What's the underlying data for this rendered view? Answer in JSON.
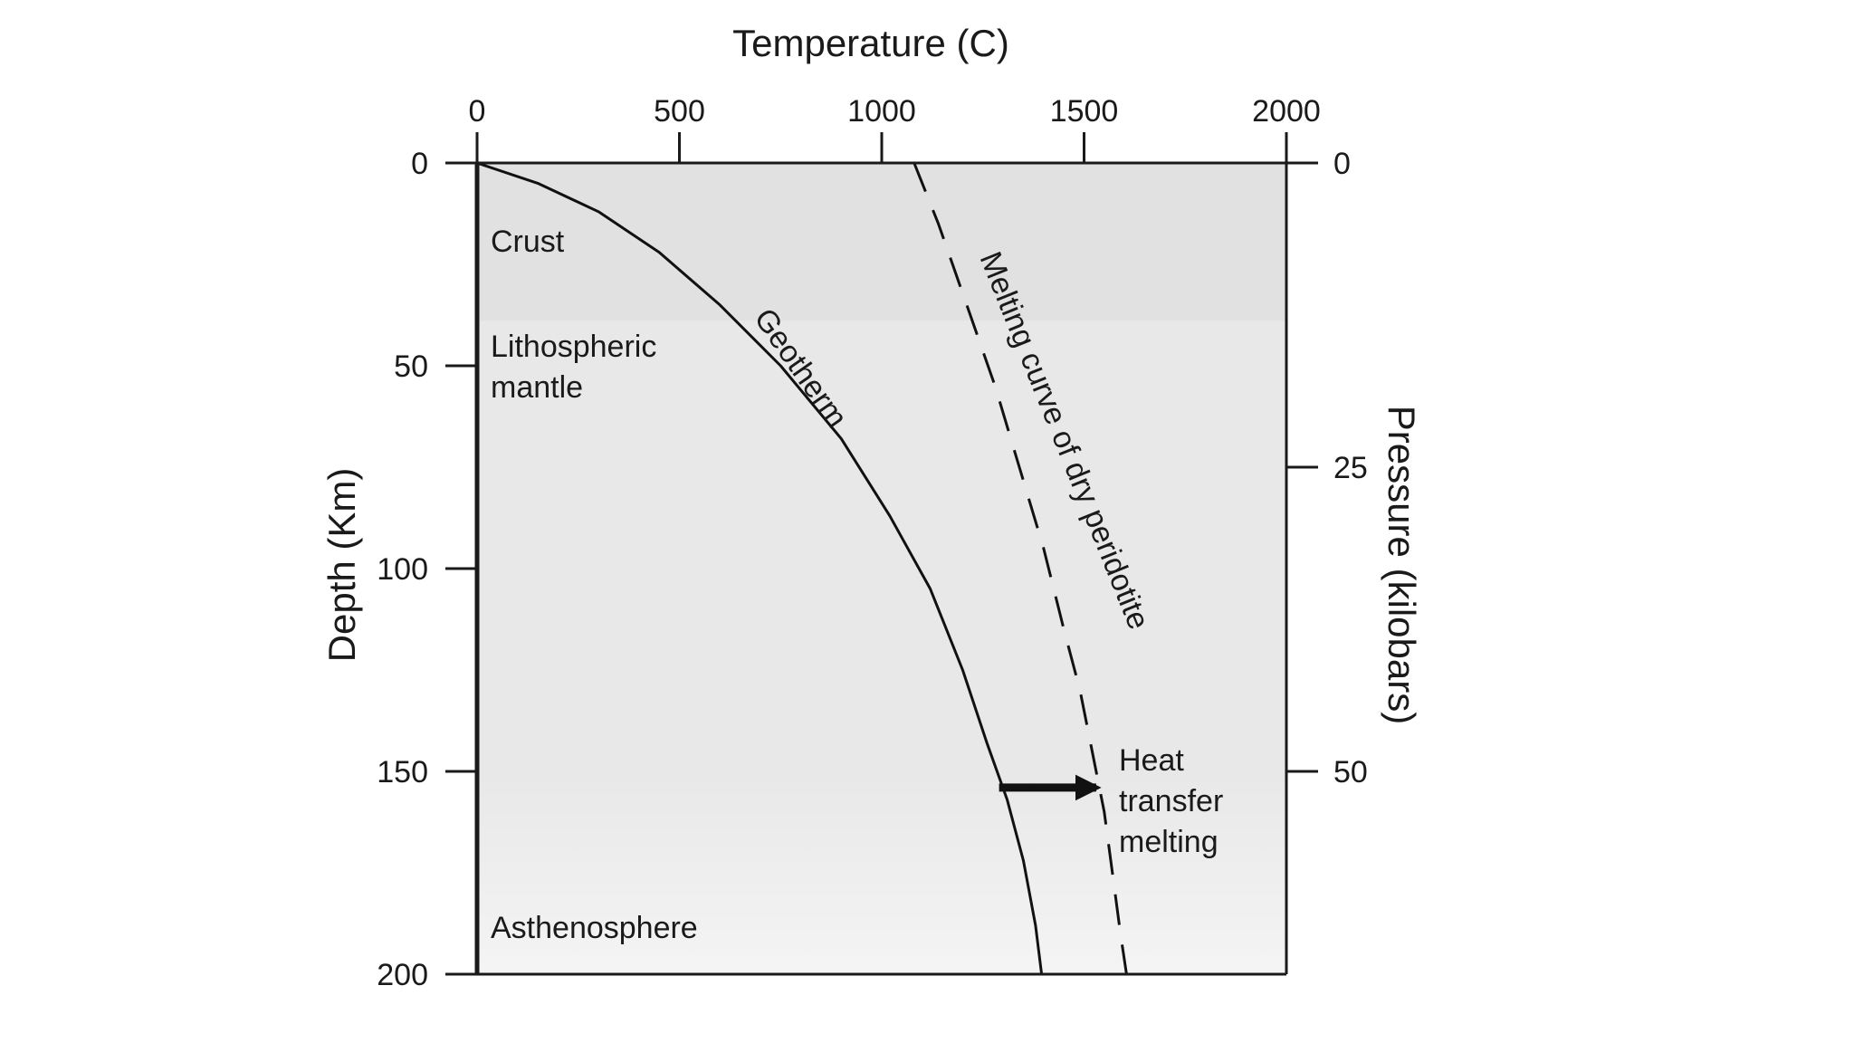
{
  "chart_data": {
    "type": "line",
    "title": "",
    "xlabel": "Temperature (C)",
    "ylabel": "Depth (Km)",
    "y2label": "Pressure (kilobars)",
    "xlim": [
      0,
      2000
    ],
    "ylim": [
      0,
      200
    ],
    "y_inverted": true,
    "x_axis_position": "top",
    "x_ticks": [
      "0",
      "500",
      "1000",
      "1500",
      "2000"
    ],
    "y_ticks": [
      "0",
      "50",
      "100",
      "150",
      "200"
    ],
    "y2_ticks": [
      "0",
      "25",
      "50"
    ],
    "y2_tick_depths": [
      0,
      75,
      150
    ],
    "grid": false,
    "regions": [
      {
        "name": "Crust",
        "depth_range": [
          0,
          39
        ],
        "fill": "#e1e1e1"
      },
      {
        "name": "Lithospheric mantle",
        "label_lines": [
          "Lithospheric",
          "mantle"
        ],
        "depth_range": [
          39,
          150
        ],
        "fill": "#e8e8e8"
      },
      {
        "name": "Asthenosphere",
        "depth_range": [
          150,
          200
        ],
        "fill_top": "#e8e8e8",
        "fill_bottom": "#f4f4f4"
      }
    ],
    "series": [
      {
        "name": "Geotherm",
        "style": "solid",
        "color": "#111111",
        "x": [
          0,
          150,
          300,
          450,
          600,
          750,
          900,
          1020,
          1120,
          1200,
          1260,
          1310,
          1350,
          1380,
          1395
        ],
        "y": [
          0,
          5,
          12,
          22,
          35,
          50,
          68,
          87,
          105,
          125,
          143,
          157,
          172,
          188,
          200
        ]
      },
      {
        "name": "Melting curve of dry peridotite",
        "style": "dashed",
        "color": "#111111",
        "x": [
          1080,
          1140,
          1210,
          1280,
          1340,
          1400,
          1450,
          1490,
          1520,
          1550,
          1570,
          1590,
          1605
        ],
        "y": [
          0,
          15,
          35,
          55,
          75,
          95,
          115,
          130,
          145,
          160,
          175,
          190,
          200
        ]
      }
    ],
    "annotations": [
      {
        "text_lines": [
          "Heat",
          "transfer",
          "melting"
        ],
        "arrow_from": [
          1290,
          154
        ],
        "arrow_to": [
          1530,
          154
        ]
      }
    ],
    "colors": {
      "axis": "#1a1a1a",
      "curve": "#111111",
      "plot_border": "#1a1a1a"
    }
  }
}
